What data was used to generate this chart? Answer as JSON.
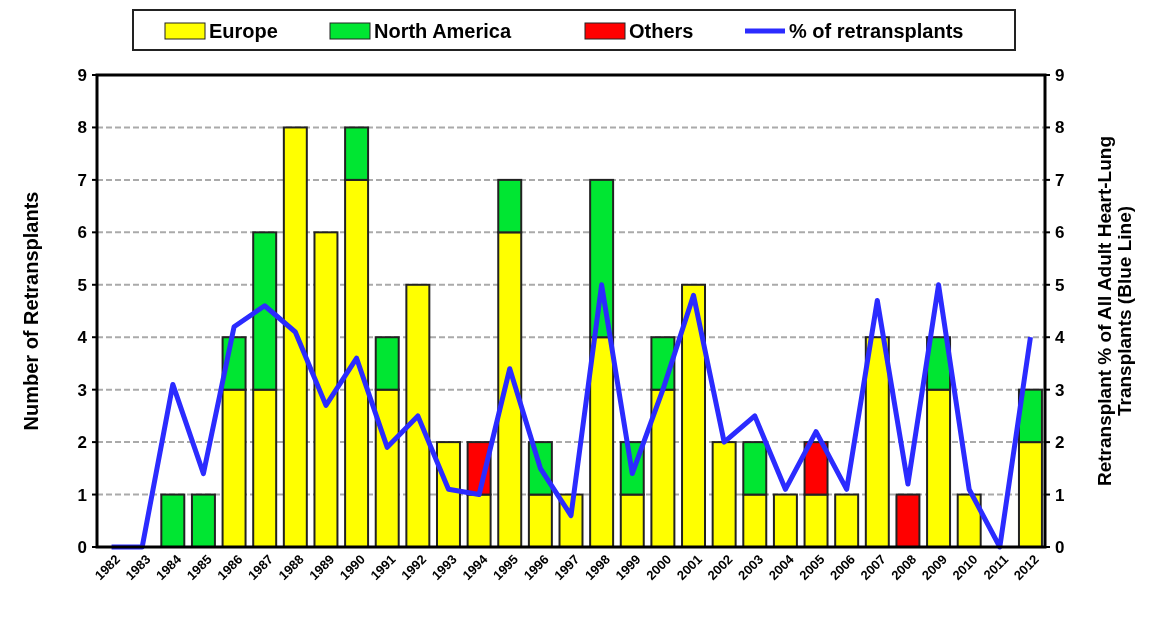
{
  "chart_data": {
    "type": "bar",
    "stacked": true,
    "ylabel": "Number of Retransplants",
    "y2label": "Retransplant % of All Adult Heart-Lung Transplants (Blue Line)",
    "categories": [
      "1982",
      "1983",
      "1984",
      "1985",
      "1986",
      "1987",
      "1988",
      "1989",
      "1990",
      "1991",
      "1992",
      "1993",
      "1994",
      "1995",
      "1996",
      "1997",
      "1998",
      "1999",
      "2000",
      "2001",
      "2002",
      "2003",
      "2004",
      "2005",
      "2006",
      "2007",
      "2008",
      "2009",
      "2010",
      "2011",
      "2012"
    ],
    "series": [
      {
        "name": "Europe",
        "color": "#ffff00",
        "values": [
          0,
          0,
          0,
          0,
          3,
          3,
          8,
          6,
          7,
          3,
          5,
          2,
          1,
          6,
          1,
          1,
          4,
          1,
          3,
          5,
          2,
          1,
          1,
          1,
          1,
          4,
          0,
          3,
          1,
          0,
          2
        ]
      },
      {
        "name": "North America",
        "color": "#00e632",
        "values": [
          0,
          0,
          1,
          1,
          1,
          3,
          0,
          0,
          1,
          1,
          0,
          0,
          0,
          1,
          1,
          0,
          3,
          1,
          1,
          0,
          0,
          1,
          0,
          0,
          0,
          0,
          0,
          1,
          0,
          0,
          1
        ]
      },
      {
        "name": "Others",
        "color": "#ff0000",
        "values": [
          0,
          0,
          0,
          0,
          0,
          0,
          0,
          0,
          0,
          0,
          0,
          0,
          1,
          0,
          0,
          0,
          0,
          0,
          0,
          0,
          0,
          0,
          0,
          1,
          0,
          0,
          1,
          0,
          0,
          0,
          0
        ]
      },
      {
        "name": "% of retransplants",
        "type": "line",
        "axis": "y2",
        "color": "#2b2bff",
        "values": [
          0,
          0,
          3.1,
          1.4,
          4.2,
          4.6,
          4.1,
          2.7,
          3.6,
          1.9,
          2.5,
          1.1,
          1.0,
          3.4,
          1.5,
          0.6,
          5.0,
          1.4,
          3.0,
          4.8,
          2.0,
          2.5,
          1.1,
          2.2,
          1.1,
          4.7,
          1.2,
          5.0,
          1.1,
          0,
          4.0
        ]
      }
    ],
    "ylim": [
      0,
      9
    ],
    "yticks": [
      0,
      1,
      2,
      3,
      4,
      5,
      6,
      7,
      8,
      9
    ],
    "y2lim": [
      0,
      9
    ],
    "y2ticks": [
      0,
      1,
      2,
      3,
      4,
      5,
      6,
      7,
      8,
      9
    ],
    "grid": "y",
    "legend": "top",
    "line_style": "solid",
    "marker": "none"
  }
}
